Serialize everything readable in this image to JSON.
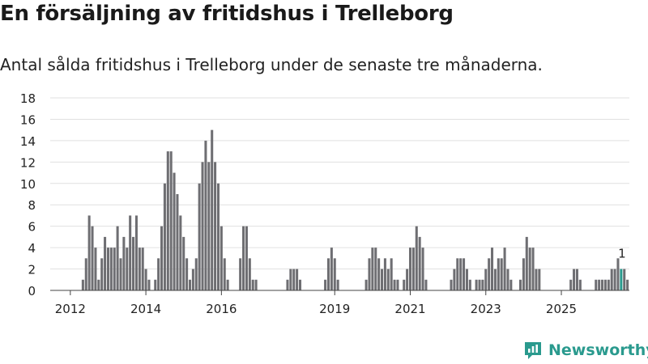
{
  "title": "En försäljning av fritidshus i Trelleborg",
  "subtitle": "Antal sålda fritidshus i Trelleborg under de senaste tre månaderna.",
  "brand": "Newsworthy",
  "colors": {
    "bar": "#6e6e72",
    "highlight": "#2a9a8e",
    "grid": "#e0e0e0",
    "axis": "#444444",
    "text": "#222222",
    "brand": "#2a9a8e"
  },
  "chart_data": {
    "type": "bar",
    "title": "En försäljning av fritidshus i Trelleborg",
    "subtitle": "Antal sålda fritidshus i Trelleborg under de senaste tre månaderna.",
    "xlabel": "",
    "ylabel": "",
    "ylim": [
      0,
      18
    ],
    "yticks": [
      0,
      2,
      4,
      6,
      8,
      10,
      12,
      14,
      16,
      18
    ],
    "grid": true,
    "legend": "none",
    "x_ticks": [
      {
        "label": "2012",
        "index": 6
      },
      {
        "label": "2014",
        "index": 30
      },
      {
        "label": "2016",
        "index": 54
      },
      {
        "label": "2019",
        "index": 90
      },
      {
        "label": "2021",
        "index": 114
      },
      {
        "label": "2023",
        "index": 138
      },
      {
        "label": "2025",
        "index": 162
      }
    ],
    "values": [
      0,
      0,
      0,
      0,
      0,
      0,
      0,
      0,
      0,
      0,
      1,
      3,
      7,
      6,
      4,
      1,
      3,
      5,
      4,
      4,
      4,
      6,
      3,
      5,
      4,
      7,
      5,
      7,
      4,
      4,
      2,
      1,
      0,
      1,
      3,
      6,
      10,
      13,
      13,
      11,
      9,
      7,
      5,
      3,
      1,
      2,
      3,
      10,
      12,
      14,
      12,
      15,
      12,
      10,
      6,
      3,
      1,
      0,
      0,
      0,
      3,
      6,
      6,
      3,
      1,
      1,
      0,
      0,
      0,
      0,
      0,
      0,
      0,
      0,
      0,
      1,
      2,
      2,
      2,
      1,
      0,
      0,
      0,
      0,
      0,
      0,
      0,
      1,
      3,
      4,
      3,
      1,
      0,
      0,
      0,
      0,
      0,
      0,
      0,
      0,
      1,
      3,
      4,
      4,
      3,
      2,
      3,
      2,
      3,
      1,
      1,
      0,
      1,
      2,
      4,
      4,
      6,
      5,
      4,
      1,
      0,
      0,
      0,
      0,
      0,
      0,
      0,
      1,
      2,
      3,
      3,
      3,
      2,
      1,
      0,
      1,
      1,
      1,
      2,
      3,
      4,
      2,
      3,
      3,
      4,
      2,
      1,
      0,
      0,
      1,
      3,
      5,
      4,
      4,
      2,
      2,
      0,
      0,
      0,
      0,
      0,
      0,
      0,
      0,
      0,
      1,
      2,
      2,
      1,
      0,
      0,
      0,
      0,
      1,
      1,
      1,
      1,
      1,
      2,
      2,
      3,
      2,
      2,
      1
    ],
    "highlight_index": 181,
    "highlight_label": "1"
  }
}
